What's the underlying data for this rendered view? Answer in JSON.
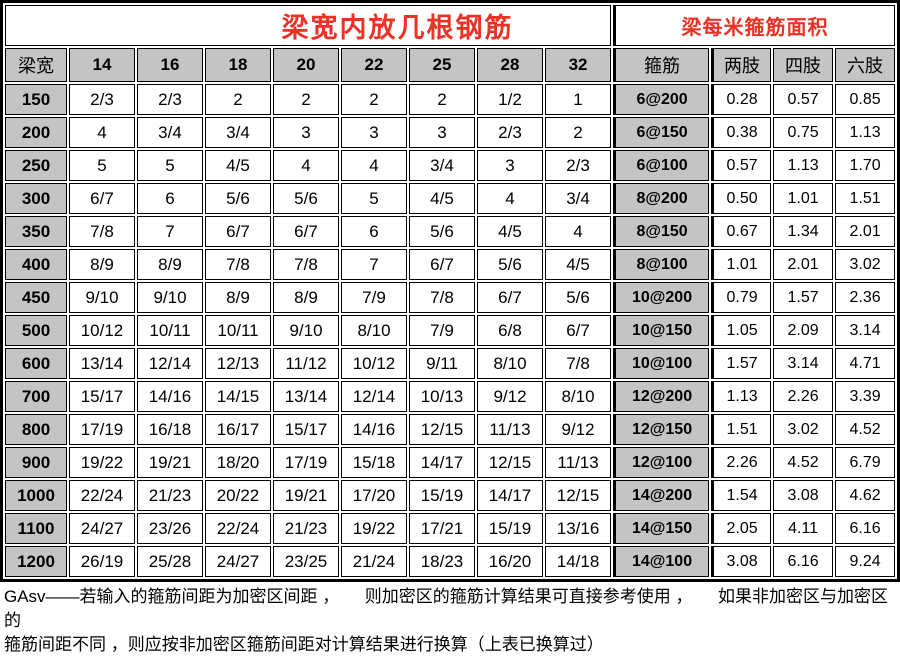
{
  "titles": {
    "left": "梁宽内放几根钢筋",
    "right": "梁每米箍筋面积"
  },
  "table": {
    "columns": [
      "梁宽",
      "14",
      "16",
      "18",
      "20",
      "22",
      "25",
      "28",
      "32",
      "箍筋",
      "两肢",
      "四肢",
      "六肢"
    ],
    "rows": [
      [
        "150",
        "2/3",
        "2/3",
        "2",
        "2",
        "2",
        "2",
        "1/2",
        "1",
        "6@200",
        "0.28",
        "0.57",
        "0.85"
      ],
      [
        "200",
        "4",
        "3/4",
        "3/4",
        "3",
        "3",
        "3",
        "2/3",
        "2",
        "6@150",
        "0.38",
        "0.75",
        "1.13"
      ],
      [
        "250",
        "5",
        "5",
        "4/5",
        "4",
        "4",
        "3/4",
        "3",
        "2/3",
        "6@100",
        "0.57",
        "1.13",
        "1.70"
      ],
      [
        "300",
        "6/7",
        "6",
        "5/6",
        "5/6",
        "5",
        "4/5",
        "4",
        "3/4",
        "8@200",
        "0.50",
        "1.01",
        "1.51"
      ],
      [
        "350",
        "7/8",
        "7",
        "6/7",
        "6/7",
        "6",
        "5/6",
        "4/5",
        "4",
        "8@150",
        "0.67",
        "1.34",
        "2.01"
      ],
      [
        "400",
        "8/9",
        "8/9",
        "7/8",
        "7/8",
        "7",
        "6/7",
        "5/6",
        "4/5",
        "8@100",
        "1.01",
        "2.01",
        "3.02"
      ],
      [
        "450",
        "9/10",
        "9/10",
        "8/9",
        "8/9",
        "7/9",
        "7/8",
        "6/7",
        "5/6",
        "10@200",
        "0.79",
        "1.57",
        "2.36"
      ],
      [
        "500",
        "10/12",
        "10/11",
        "10/11",
        "9/10",
        "8/10",
        "7/9",
        "6/8",
        "6/7",
        "10@150",
        "1.05",
        "2.09",
        "3.14"
      ],
      [
        "600",
        "13/14",
        "12/14",
        "12/13",
        "11/12",
        "10/12",
        "9/11",
        "8/10",
        "7/8",
        "10@100",
        "1.57",
        "3.14",
        "4.71"
      ],
      [
        "700",
        "15/17",
        "14/16",
        "14/15",
        "13/14",
        "12/14",
        "10/13",
        "9/12",
        "8/10",
        "12@200",
        "1.13",
        "2.26",
        "3.39"
      ],
      [
        "800",
        "17/19",
        "16/18",
        "16/17",
        "15/17",
        "14/16",
        "12/15",
        "11/13",
        "9/12",
        "12@150",
        "1.51",
        "3.02",
        "4.52"
      ],
      [
        "900",
        "19/22",
        "19/21",
        "18/20",
        "17/19",
        "15/18",
        "14/17",
        "12/15",
        "11/13",
        "12@100",
        "2.26",
        "4.52",
        "6.79"
      ],
      [
        "1000",
        "22/24",
        "21/23",
        "20/22",
        "19/21",
        "17/20",
        "15/19",
        "14/17",
        "12/15",
        "14@200",
        "1.54",
        "3.08",
        "4.62"
      ],
      [
        "1100",
        "24/27",
        "23/26",
        "22/24",
        "21/23",
        "19/22",
        "17/21",
        "15/19",
        "13/16",
        "14@150",
        "2.05",
        "4.11",
        "6.16"
      ],
      [
        "1200",
        "26/19",
        "25/28",
        "24/27",
        "23/25",
        "21/24",
        "18/23",
        "16/20",
        "14/18",
        "14@100",
        "3.08",
        "6.16",
        "9.24"
      ]
    ]
  },
  "footer": {
    "line1": "GAsv——若输入的箍筋间距为加密区间距 ，　　则加密区的箍筋计算结果可直接参考使用 ，　　如果非加密区与加密区的",
    "line2": "箍筋间距不同 ，则应按非加密区箍筋间距对计算结果进行换算（上表已换算过）"
  },
  "colors": {
    "title_red": "#ee3124",
    "header_gray": "#c4c4c4",
    "border_black": "#000000"
  }
}
